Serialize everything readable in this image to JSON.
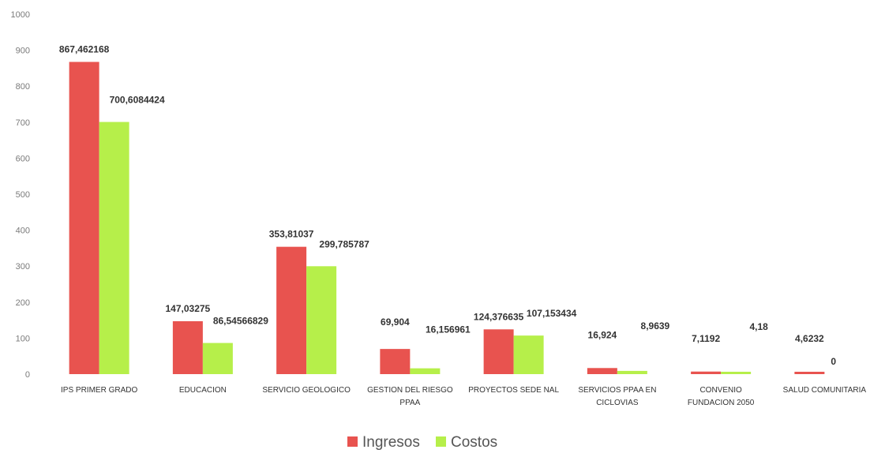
{
  "chart_data": {
    "type": "bar",
    "categories": [
      "IPS PRIMER GRADO",
      "EDUCACION",
      "SERVICIO GEOLOGICO",
      "GESTION DEL RIESGO PPAA",
      "PROYECTOS SEDE NAL",
      "SERVICIOS PPAA EN CICLOVIAS",
      "CONVENIO FUNDACION 2050",
      "SALUD COMUNITARIA"
    ],
    "category_lines": [
      [
        "IPS PRIMER GRADO"
      ],
      [
        "EDUCACION"
      ],
      [
        "SERVICIO GEOLOGICO"
      ],
      [
        "GESTION DEL RIESGO",
        "PPAA"
      ],
      [
        "PROYECTOS SEDE NAL"
      ],
      [
        "SERVICIOS PPAA EN",
        "CICLOVIAS"
      ],
      [
        "CONVENIO",
        "FUNDACION 2050"
      ],
      [
        "SALUD COMUNITARIA"
      ]
    ],
    "series": [
      {
        "name": "Ingresos",
        "color": "#e8534f",
        "values": [
          867.462168,
          147.03275,
          353.81037,
          69.904,
          124.376635,
          16.924,
          7.1192,
          4.6232
        ],
        "labels": [
          "867,462168",
          "147,03275",
          "353,81037",
          "69,904",
          "124,376635",
          "16,924",
          "7,1192",
          "4,6232"
        ]
      },
      {
        "name": "Costos",
        "color": "#b6ef4a",
        "values": [
          700.6084424,
          86.54566829,
          299.785787,
          16.156961,
          107.153434,
          8.9639,
          4.18,
          0
        ],
        "labels": [
          "700,6084424",
          "86,54566829",
          "299,785787",
          "16,156961",
          "107,153434",
          "8,9639",
          "4,18",
          "0"
        ]
      }
    ],
    "yticks": [
      "0",
      "100",
      "200",
      "300",
      "400",
      "500",
      "600",
      "700",
      "800",
      "900",
      "1000"
    ],
    "ylim": [
      0,
      1000
    ],
    "legend_position": "bottom",
    "grid": false
  }
}
